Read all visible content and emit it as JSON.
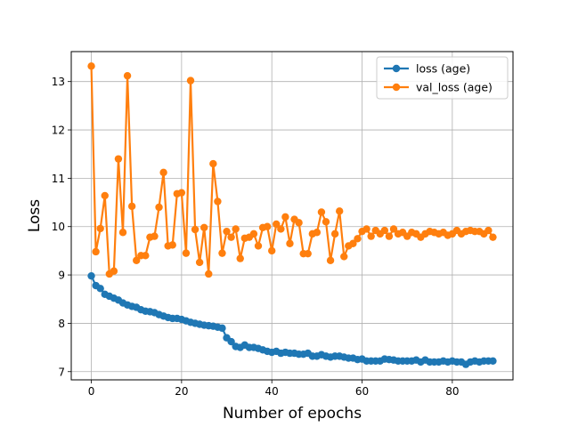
{
  "chart_data": {
    "type": "line",
    "xlabel": "Number of epochs",
    "ylabel": "Loss",
    "xlim": [
      -4.45,
      93.45
    ],
    "ylim": [
      6.83,
      13.62
    ],
    "xticks": [
      0,
      20,
      40,
      60,
      80
    ],
    "yticks": [
      7,
      8,
      9,
      10,
      11,
      12,
      13
    ],
    "grid": true,
    "legend_position": "top-right",
    "series": [
      {
        "name": "loss (age)",
        "color": "#1f77b4",
        "marker": "circle",
        "x": [
          0,
          1,
          2,
          3,
          4,
          5,
          6,
          7,
          8,
          9,
          10,
          11,
          12,
          13,
          14,
          15,
          16,
          17,
          18,
          19,
          20,
          21,
          22,
          23,
          24,
          25,
          26,
          27,
          28,
          29,
          30,
          31,
          32,
          33,
          34,
          35,
          36,
          37,
          38,
          39,
          40,
          41,
          42,
          43,
          44,
          45,
          46,
          47,
          48,
          49,
          50,
          51,
          52,
          53,
          54,
          55,
          56,
          57,
          58,
          59,
          60,
          61,
          62,
          63,
          64,
          65,
          66,
          67,
          68,
          69,
          70,
          71,
          72,
          73,
          74,
          75,
          76,
          77,
          78,
          79,
          80,
          81,
          82,
          83,
          84,
          85,
          86,
          87,
          88,
          89
        ],
        "values": [
          8.98,
          8.78,
          8.72,
          8.6,
          8.56,
          8.52,
          8.48,
          8.42,
          8.38,
          8.35,
          8.33,
          8.28,
          8.25,
          8.24,
          8.22,
          8.18,
          8.15,
          8.12,
          8.1,
          8.1,
          8.08,
          8.05,
          8.02,
          8.0,
          7.98,
          7.96,
          7.95,
          7.94,
          7.92,
          7.9,
          7.7,
          7.62,
          7.52,
          7.5,
          7.55,
          7.5,
          7.5,
          7.48,
          7.45,
          7.42,
          7.4,
          7.42,
          7.38,
          7.4,
          7.38,
          7.38,
          7.36,
          7.36,
          7.38,
          7.32,
          7.32,
          7.35,
          7.32,
          7.3,
          7.32,
          7.32,
          7.3,
          7.28,
          7.28,
          7.25,
          7.26,
          7.22,
          7.22,
          7.22,
          7.22,
          7.26,
          7.25,
          7.24,
          7.22,
          7.22,
          7.22,
          7.22,
          7.24,
          7.2,
          7.24,
          7.2,
          7.2,
          7.2,
          7.22,
          7.2,
          7.22,
          7.2,
          7.2,
          7.15,
          7.2,
          7.22,
          7.2,
          7.22,
          7.22,
          7.22
        ]
      },
      {
        "name": "val_loss (age)",
        "color": "#ff7f0e",
        "marker": "circle",
        "x": [
          0,
          1,
          2,
          3,
          4,
          5,
          6,
          7,
          8,
          9,
          10,
          11,
          12,
          13,
          14,
          15,
          16,
          17,
          18,
          19,
          20,
          21,
          22,
          23,
          24,
          25,
          26,
          27,
          28,
          29,
          30,
          31,
          32,
          33,
          34,
          35,
          36,
          37,
          38,
          39,
          40,
          41,
          42,
          43,
          44,
          45,
          46,
          47,
          48,
          49,
          50,
          51,
          52,
          53,
          54,
          55,
          56,
          57,
          58,
          59,
          60,
          61,
          62,
          63,
          64,
          65,
          66,
          67,
          68,
          69,
          70,
          71,
          72,
          73,
          74,
          75,
          76,
          77,
          78,
          79,
          80,
          81,
          82,
          83,
          84,
          85,
          86,
          87,
          88,
          89
        ],
        "values": [
          13.32,
          9.48,
          9.96,
          10.64,
          9.02,
          9.08,
          11.4,
          9.88,
          13.12,
          10.42,
          9.3,
          9.4,
          9.4,
          9.78,
          9.8,
          10.4,
          11.12,
          9.6,
          9.62,
          10.68,
          10.7,
          9.45,
          13.02,
          9.94,
          9.26,
          9.98,
          9.02,
          11.3,
          10.52,
          9.45,
          9.9,
          9.78,
          9.95,
          9.34,
          9.76,
          9.78,
          9.85,
          9.6,
          9.98,
          10.0,
          9.5,
          10.05,
          9.95,
          10.2,
          9.65,
          10.15,
          10.08,
          9.44,
          9.44,
          9.85,
          9.88,
          10.3,
          10.1,
          9.3,
          9.85,
          10.32,
          9.38,
          9.6,
          9.65,
          9.75,
          9.9,
          9.95,
          9.8,
          9.92,
          9.85,
          9.92,
          9.8,
          9.95,
          9.85,
          9.88,
          9.8,
          9.88,
          9.85,
          9.78,
          9.85,
          9.9,
          9.88,
          9.85,
          9.88,
          9.82,
          9.85,
          9.92,
          9.85,
          9.9,
          9.92,
          9.9,
          9.9,
          9.85,
          9.92,
          9.78
        ]
      }
    ]
  }
}
